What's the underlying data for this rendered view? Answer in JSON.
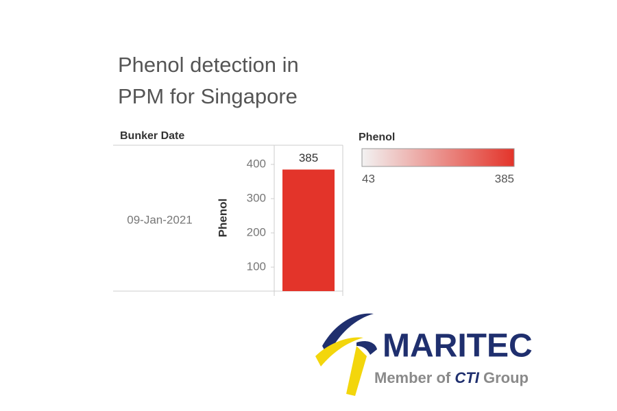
{
  "chart_data": {
    "type": "bar",
    "title": "Phenol detection in PPM for Singapore",
    "row_header": "Bunker Date",
    "categories": [
      "09-Jan-2021"
    ],
    "y_label": "Phenol",
    "values": [
      385
    ],
    "ylim": [
      30,
      454
    ],
    "yticks": [
      100,
      200,
      300,
      400
    ],
    "color_legend": {
      "title": "Phenol",
      "min": 43,
      "max": 385,
      "colors": [
        "#f2f2f2",
        "#e3342a"
      ]
    }
  },
  "logo": {
    "name": "MARITEC",
    "tagline_prefix": "Member of",
    "tagline_brand": "CTI",
    "tagline_suffix": "Group"
  }
}
